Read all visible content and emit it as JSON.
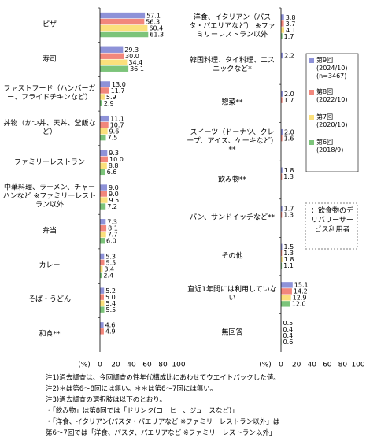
{
  "chart_data": [
    {
      "type": "hbar",
      "xlabel": "(%)",
      "categories": [
        "ピザ",
        "寿司",
        "ファストフード（ハンバーガー、フライドチキンなど）",
        "丼物（かつ丼、天丼、釜飯など）",
        "ファミリーレストラン",
        "中華料理、ラーメン、チャーハンなど ※ファミリーレストラン以外",
        "弁当",
        "カレー",
        "そば・うどん",
        "和食**"
      ],
      "series": [
        {
          "color": "#8e92d8",
          "values": [
            57.1,
            29.3,
            13.0,
            11.1,
            9.3,
            9.0,
            7.3,
            5.3,
            5.2,
            4.6
          ],
          "value_labels": [
            "57.1",
            "29.3",
            "13.0",
            "11.1",
            "9.3",
            "9.0",
            "7.3",
            "5.3",
            "5.2",
            "4.6"
          ]
        },
        {
          "color": "#f2877c",
          "values": [
            56.3,
            30.0,
            11.7,
            10.7,
            10.0,
            9.0,
            8.1,
            5.5,
            5.0,
            4.9
          ],
          "value_labels": [
            "56.3",
            "30.0",
            "11.7",
            "10.7",
            "10.0",
            "9.0",
            "8.1",
            "5.5",
            "5.0",
            "4.9"
          ]
        },
        {
          "color": "#fbe07c",
          "values": [
            60.4,
            34.4,
            5.9,
            9.6,
            8.8,
            9.5,
            7.7,
            3.4,
            5.4,
            null
          ],
          "value_labels": [
            "60.4",
            "34.4",
            "5.9",
            "9.6",
            "8.8",
            "9.5",
            "7.7",
            "3.4",
            "5.4",
            null
          ]
        },
        {
          "color": "#7cc47a",
          "values": [
            61.3,
            36.1,
            2.9,
            7.5,
            6.6,
            7.2,
            6.0,
            2.4,
            5.5,
            null
          ],
          "value_labels": [
            "61.3",
            "36.1",
            "2.9",
            "7.5",
            "6.6",
            "7.2",
            "6.0",
            "2.4",
            "5.5",
            null
          ]
        }
      ],
      "xlim": [
        0,
        100
      ],
      "xticks": [
        0,
        20,
        40,
        60,
        80,
        100
      ]
    },
    {
      "type": "hbar",
      "xlabel": "(%)",
      "annotation": "：飲食物のデリバリーサービス利用者",
      "categories": [
        "洋食、イタリアン（パスタ・パエリアなど） ※ファミリーレストラン以外",
        "韓国料理、タイ料理、エスニックなど*",
        "惣菜**",
        "スイーツ（ドーナツ、クレープ、アイス、ケーキなど）**",
        "飲み物**",
        "パン、サンドイッチなど**",
        "その他",
        "直近1年間には利用していない",
        "無回答"
      ],
      "series": [
        {
          "name": "第9回\n(2024/10)\n(n=3467)",
          "color": "#8e92d8",
          "values": [
            3.8,
            2.2,
            2.0,
            2.0,
            1.8,
            1.7,
            1.5,
            15.1,
            0.5
          ],
          "value_labels": [
            "3.8",
            "2.2",
            "2.0",
            "2.0",
            "1.8",
            "1.7",
            "1.5",
            "15.1",
            "0.5"
          ]
        },
        {
          "name": "第8回\n(2022/10)",
          "color": "#f2877c",
          "values": [
            3.7,
            null,
            1.7,
            1.6,
            1.3,
            1.3,
            1.3,
            14.2,
            0.4
          ],
          "value_labels": [
            "3.7",
            null,
            "1.7",
            "1.6",
            "1.3",
            "1.3",
            "1.3",
            "14.2",
            "0.4"
          ]
        },
        {
          "name": "第7回\n(2020/10)",
          "color": "#fbe07c",
          "values": [
            4.1,
            null,
            null,
            null,
            null,
            null,
            1.8,
            12.9,
            0.4
          ],
          "value_labels": [
            "4.1",
            null,
            null,
            null,
            null,
            null,
            "1.8",
            "12.9",
            "0.4"
          ]
        },
        {
          "name": "第6回\n(2018/9)",
          "color": "#7cc47a",
          "values": [
            1.7,
            null,
            null,
            null,
            null,
            null,
            1.1,
            12.0,
            0.6
          ],
          "value_labels": [
            "1.7",
            null,
            null,
            null,
            null,
            null,
            "1.1",
            "12.0",
            "0.6"
          ]
        }
      ],
      "xlim": [
        0,
        100
      ],
      "xticks": [
        0,
        20,
        40,
        60,
        80,
        100
      ],
      "legend": "upper right"
    }
  ],
  "notes": [
    "注1)過去調査は、今回調査の性年代構成比にあわせてウエイトバックした値。",
    "注2)＊は第6～8回には無い。＊＊は第6～7回には無い。",
    "注3)過去調査の選択肢は以下のとおり。",
    "・「飲み物」は第8回では「ドリンク(コーヒー、ジュースなど)」",
    "・「洋食、イタリアン(パスタ・パエリアなど ※ファミリーレストラン以外」は",
    "第6～7回では「洋食、パスタ、パエリアなど ※ファミリーレストラン以外」"
  ]
}
